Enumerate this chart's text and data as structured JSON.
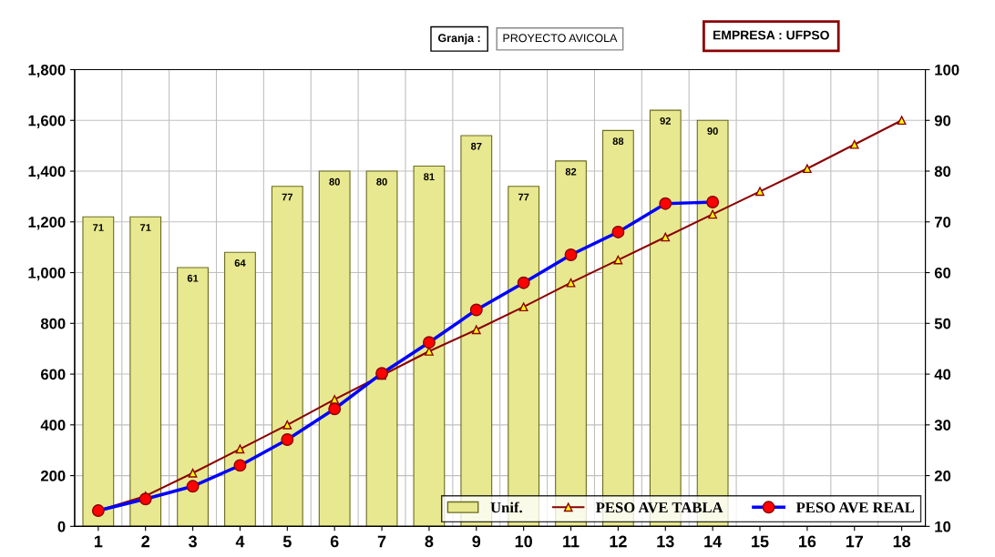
{
  "chart_data": {
    "type": "bar",
    "annotations": [
      "Granja :",
      "PROYECTO AVICOLA",
      "EMPRESA : UFPSO"
    ],
    "categories": [
      "1",
      "2",
      "3",
      "4",
      "5",
      "6",
      "7",
      "8",
      "9",
      "10",
      "11",
      "12",
      "13",
      "14",
      "15",
      "16",
      "17",
      "18"
    ],
    "series": [
      {
        "name": "Unif.",
        "axis": "y2",
        "color": "#e8e890",
        "values": [
          71,
          71,
          61,
          64,
          77,
          80,
          80,
          81,
          87,
          77,
          82,
          88,
          92,
          90,
          null,
          null,
          null,
          null
        ],
        "value_labels": [
          "71",
          "71",
          "61",
          "64",
          "77",
          "80",
          "80",
          "81",
          "87",
          "77",
          "82",
          "88",
          "92",
          "90",
          null,
          null,
          null,
          null
        ]
      },
      {
        "name": "PESO AVE TABLA",
        "type": "line",
        "color": "#8b0000",
        "marker": "triangle",
        "values": [
          62,
          120,
          210,
          305,
          400,
          500,
          595,
          690,
          775,
          865,
          960,
          1050,
          1140,
          1230,
          1320,
          1410,
          1505,
          1600
        ]
      },
      {
        "name": "PESO AVE REAL",
        "type": "line",
        "color": "#0000ff",
        "marker": "circle",
        "values": [
          62,
          108,
          158,
          240,
          342,
          463,
          603,
          725,
          853,
          960,
          1070,
          1160,
          1272,
          1278,
          null,
          null,
          null,
          null
        ]
      }
    ],
    "ylim": [
      0,
      1800
    ],
    "yticks": [
      {
        "value": 0,
        "label": "0"
      },
      {
        "value": 200,
        "label": "200"
      },
      {
        "value": 400,
        "label": "400"
      },
      {
        "value": 600,
        "label": "600"
      },
      {
        "value": 800,
        "label": "800"
      },
      {
        "value": 1000,
        "label": "1,000"
      },
      {
        "value": 1200,
        "label": "1,200"
      },
      {
        "value": 1400,
        "label": "1,400"
      },
      {
        "value": 1600,
        "label": "1,600"
      },
      {
        "value": 1800,
        "label": "1,800"
      }
    ],
    "y2lim": [
      10,
      100
    ],
    "y2ticks": [
      10,
      20,
      30,
      40,
      50,
      60,
      70,
      80,
      90,
      100
    ],
    "grid": true,
    "legend": "bottom right"
  }
}
